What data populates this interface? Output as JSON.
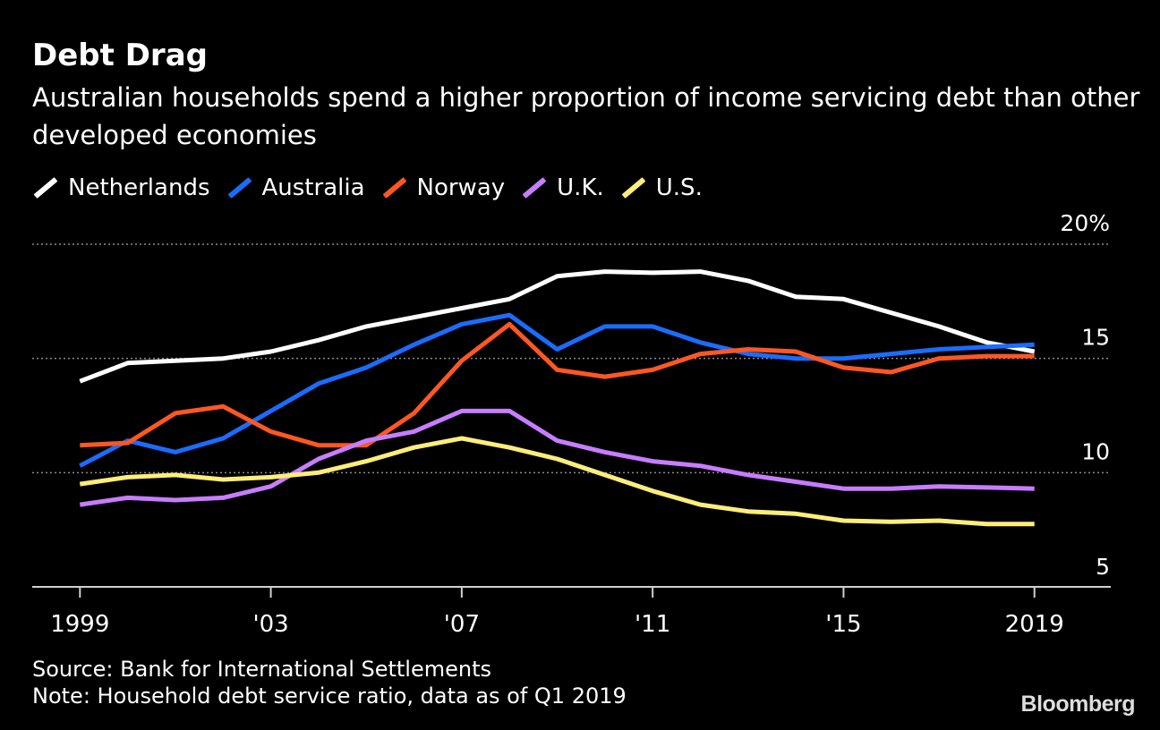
{
  "chart_data": {
    "type": "line",
    "title": "Debt Drag",
    "subtitle": "Australian households spend a higher proportion of income servicing debt than other developed economies",
    "x": [
      1999,
      2000,
      2001,
      2002,
      2003,
      2004,
      2005,
      2006,
      2007,
      2008,
      2009,
      2010,
      2011,
      2012,
      2013,
      2014,
      2015,
      2016,
      2017,
      2018,
      2019
    ],
    "x_ticks": [
      1999,
      2003,
      2007,
      2011,
      2015,
      2019
    ],
    "x_tick_labels": [
      "1999",
      "'03",
      "'07",
      "'11",
      "'15",
      "2019"
    ],
    "xlim": [
      1998,
      2020.6
    ],
    "ylim": [
      5,
      20
    ],
    "y_ticks": [
      5,
      10,
      15,
      20
    ],
    "y_tick_labels": [
      "5",
      "10",
      "15",
      "20%"
    ],
    "grid": true,
    "legend_position": "top-left",
    "series": [
      {
        "name": "Netherlands",
        "color": "#ffffff",
        "values": [
          14.0,
          14.8,
          14.9,
          15.0,
          15.3,
          15.8,
          16.4,
          16.8,
          17.2,
          17.6,
          18.6,
          18.8,
          18.75,
          18.8,
          18.4,
          17.7,
          17.6,
          17.0,
          16.4,
          15.7,
          15.3
        ]
      },
      {
        "name": "Australia",
        "color": "#1a6cff",
        "values": [
          10.3,
          11.4,
          10.9,
          11.5,
          12.7,
          13.9,
          14.6,
          15.6,
          16.5,
          16.9,
          15.4,
          16.4,
          16.4,
          15.7,
          15.2,
          15.0,
          15.0,
          15.2,
          15.4,
          15.5,
          15.6
        ]
      },
      {
        "name": "Norway",
        "color": "#ff5722",
        "values": [
          11.2,
          11.3,
          12.6,
          12.9,
          11.8,
          11.2,
          11.2,
          12.6,
          14.9,
          16.5,
          14.5,
          14.2,
          14.5,
          15.2,
          15.4,
          15.3,
          14.6,
          14.4,
          15.0,
          15.1,
          15.1
        ]
      },
      {
        "name": "U.K.",
        "color": "#c77dff",
        "values": [
          8.6,
          8.9,
          8.8,
          8.9,
          9.4,
          10.6,
          11.4,
          11.8,
          12.7,
          12.7,
          11.4,
          10.9,
          10.5,
          10.3,
          9.9,
          9.6,
          9.3,
          9.3,
          9.4,
          9.35,
          9.3
        ]
      },
      {
        "name": "U.S.",
        "color": "#ffed7a",
        "values": [
          9.5,
          9.8,
          9.9,
          9.7,
          9.8,
          10.0,
          10.5,
          11.1,
          11.5,
          11.1,
          10.6,
          9.9,
          9.2,
          8.6,
          8.3,
          8.2,
          7.9,
          7.85,
          7.9,
          7.75,
          7.75
        ]
      }
    ]
  },
  "footer": {
    "source": "Source: Bank for International Settlements",
    "note": "Note: Household debt service ratio, data as of Q1 2019"
  },
  "brand": "Bloomberg"
}
